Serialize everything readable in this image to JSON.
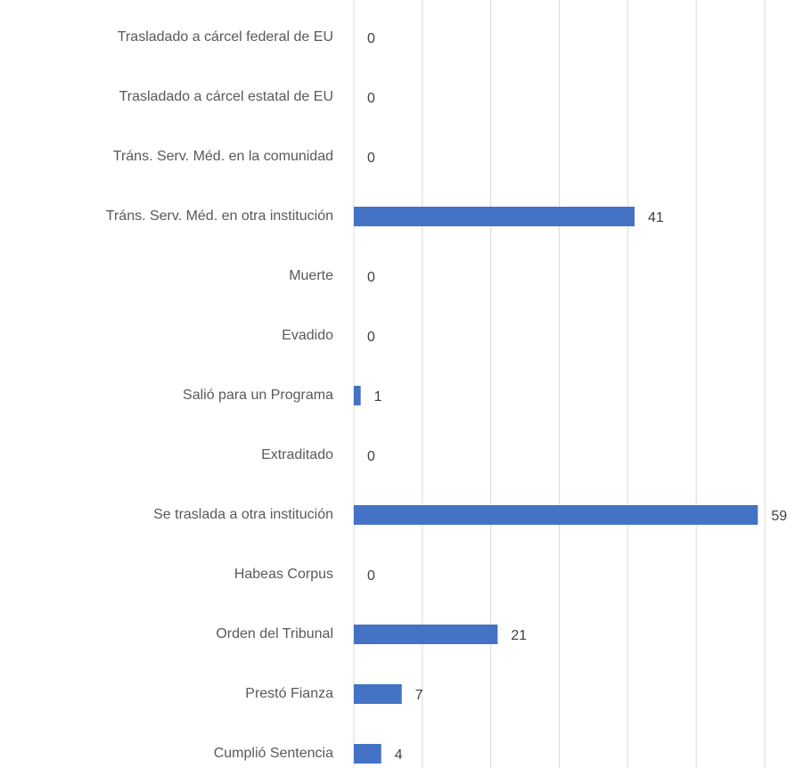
{
  "chart_data": {
    "type": "bar",
    "orientation": "horizontal",
    "categories": [
      "Trasladado a cárcel federal de EU",
      "Trasladado a cárcel estatal de EU",
      "Tráns. Serv. Méd. en la comunidad",
      "Tráns. Serv. Méd. en otra institución",
      "Muerte",
      "Evadido",
      "Salió para un Programa",
      "Extraditado",
      "Se traslada a otra institución",
      "Habeas Corpus",
      "Orden del Tribunal",
      "Prestó Fianza",
      "Cumplió Sentencia"
    ],
    "values": [
      0,
      0,
      0,
      41,
      0,
      0,
      1,
      0,
      59,
      0,
      21,
      7,
      4
    ],
    "color": "#4472c4",
    "xlim": [
      0,
      60
    ],
    "xticks": [
      0,
      10,
      20,
      30,
      40,
      50,
      60
    ],
    "grid": true
  }
}
